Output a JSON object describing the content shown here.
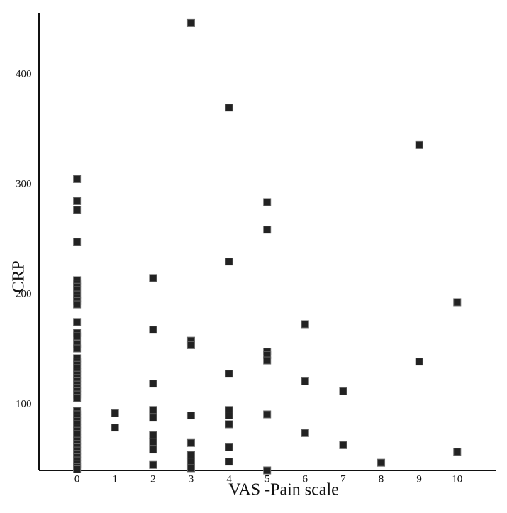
{
  "chart_data": {
    "type": "scatter",
    "x_label": "VAS -Pain scale",
    "y_label": "CRP",
    "color": "#222222",
    "grid": false,
    "xlim": [
      -1,
      11.03
    ],
    "ylim": [
      40,
      455
    ],
    "xticks": [
      0,
      1,
      2,
      3,
      4,
      5,
      6,
      7,
      8,
      9,
      10
    ],
    "yticks": [
      100,
      200,
      300,
      400
    ],
    "x": [
      0,
      0,
      0,
      0,
      0,
      0,
      0,
      0,
      0,
      0,
      0,
      0,
      0,
      0,
      0,
      0,
      0,
      0,
      0,
      0,
      0,
      0,
      0,
      0,
      0,
      0,
      0,
      0,
      0,
      0,
      0,
      0,
      0,
      0,
      0,
      0,
      0,
      0,
      0,
      0,
      0,
      0,
      0,
      0,
      0,
      0,
      0,
      0,
      0,
      1,
      1,
      2,
      2,
      2,
      2,
      2,
      2,
      2,
      2,
      2,
      3,
      3,
      3,
      3,
      3,
      3,
      3,
      3,
      4,
      4,
      4,
      4,
      4,
      4,
      4,
      4,
      5,
      5,
      5,
      5,
      5,
      5,
      5,
      6,
      6,
      6,
      7,
      7,
      8,
      9,
      9,
      10,
      10
    ],
    "y": [
      305,
      285,
      277,
      248,
      213,
      210,
      207,
      204,
      200,
      197,
      194,
      191,
      175,
      165,
      162,
      155,
      151,
      142,
      139,
      136,
      133,
      130,
      127,
      124,
      121,
      118,
      115,
      112,
      109,
      106,
      94,
      91,
      88,
      85,
      82,
      79,
      76,
      73,
      70,
      67,
      64,
      61,
      58,
      55,
      52,
      49,
      46,
      43,
      41,
      92,
      79,
      215,
      168,
      119,
      95,
      88,
      72,
      66,
      59,
      45,
      447,
      158,
      154,
      90,
      65,
      54,
      48,
      42,
      370,
      230,
      128,
      95,
      90,
      82,
      61,
      48,
      284,
      259,
      148,
      145,
      140,
      91,
      40,
      173,
      121,
      74,
      112,
      63,
      47,
      336,
      139,
      193,
      57
    ]
  }
}
